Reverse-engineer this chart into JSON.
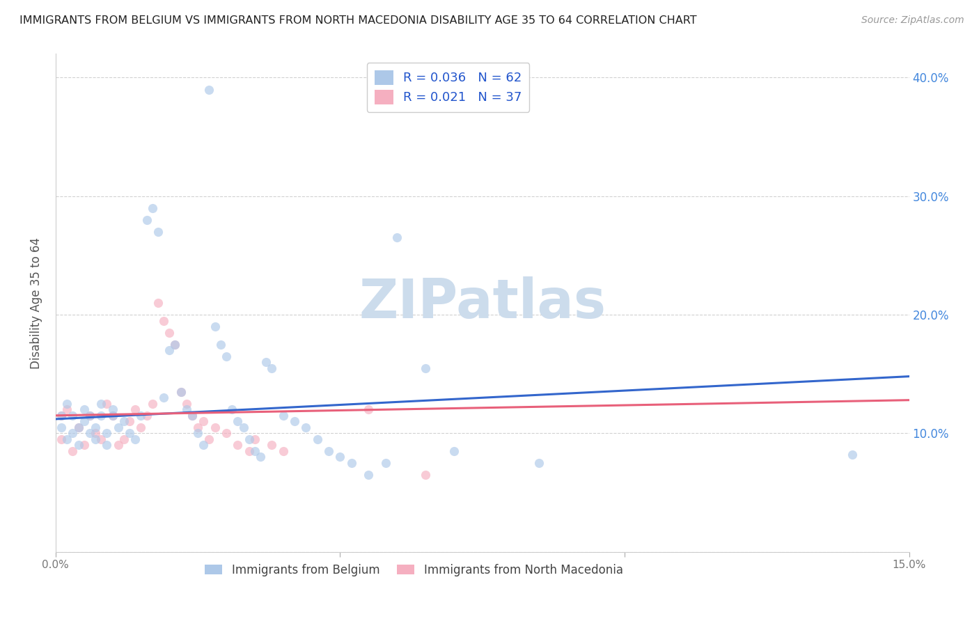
{
  "title": "IMMIGRANTS FROM BELGIUM VS IMMIGRANTS FROM NORTH MACEDONIA DISABILITY AGE 35 TO 64 CORRELATION CHART",
  "source": "Source: ZipAtlas.com",
  "ylabel": "Disability Age 35 to 64",
  "xlim": [
    0.0,
    0.15
  ],
  "ylim": [
    0.0,
    0.42
  ],
  "xticks": [
    0.0,
    0.05,
    0.1,
    0.15
  ],
  "yticks": [
    0.0,
    0.1,
    0.2,
    0.3,
    0.4
  ],
  "xtick_labels_show": [
    "0.0%",
    "",
    "",
    "15.0%"
  ],
  "ytick_labels_right": [
    "",
    "10.0%",
    "20.0%",
    "30.0%",
    "40.0%"
  ],
  "legend_labels_bottom": [
    "Immigrants from Belgium",
    "Immigrants from North Macedonia"
  ],
  "R_belgium": 0.036,
  "N_belgium": 62,
  "R_macedonia": 0.021,
  "N_macedonia": 37,
  "color_belgium": "#adc8e8",
  "color_macedonia": "#f5afc0",
  "line_color_belgium": "#3366cc",
  "line_color_macedonia": "#e8607a",
  "scatter_alpha": 0.65,
  "scatter_size": 90,
  "watermark": "ZIPatlas",
  "watermark_color": "#ccdcec",
  "background_color": "#ffffff",
  "grid_color": "#cccccc",
  "blue_x": [
    0.001,
    0.001,
    0.002,
    0.002,
    0.003,
    0.003,
    0.004,
    0.004,
    0.005,
    0.005,
    0.006,
    0.006,
    0.007,
    0.007,
    0.008,
    0.008,
    0.009,
    0.009,
    0.01,
    0.01,
    0.011,
    0.012,
    0.013,
    0.014,
    0.015,
    0.016,
    0.017,
    0.018,
    0.019,
    0.02,
    0.021,
    0.022,
    0.023,
    0.024,
    0.025,
    0.026,
    0.027,
    0.028,
    0.029,
    0.03,
    0.031,
    0.032,
    0.033,
    0.034,
    0.035,
    0.036,
    0.037,
    0.038,
    0.04,
    0.042,
    0.044,
    0.046,
    0.048,
    0.05,
    0.052,
    0.055,
    0.058,
    0.06,
    0.065,
    0.07,
    0.085,
    0.14
  ],
  "blue_y": [
    0.115,
    0.105,
    0.125,
    0.095,
    0.115,
    0.1,
    0.105,
    0.09,
    0.11,
    0.12,
    0.115,
    0.1,
    0.105,
    0.095,
    0.115,
    0.125,
    0.1,
    0.09,
    0.115,
    0.12,
    0.105,
    0.11,
    0.1,
    0.095,
    0.115,
    0.28,
    0.29,
    0.27,
    0.13,
    0.17,
    0.175,
    0.135,
    0.12,
    0.115,
    0.1,
    0.09,
    0.39,
    0.19,
    0.175,
    0.165,
    0.12,
    0.11,
    0.105,
    0.095,
    0.085,
    0.08,
    0.16,
    0.155,
    0.115,
    0.11,
    0.105,
    0.095,
    0.085,
    0.08,
    0.075,
    0.065,
    0.075,
    0.265,
    0.155,
    0.085,
    0.075,
    0.082
  ],
  "pink_x": [
    0.001,
    0.001,
    0.002,
    0.003,
    0.004,
    0.005,
    0.006,
    0.007,
    0.008,
    0.009,
    0.01,
    0.011,
    0.012,
    0.013,
    0.014,
    0.015,
    0.016,
    0.017,
    0.018,
    0.019,
    0.02,
    0.021,
    0.022,
    0.023,
    0.024,
    0.025,
    0.026,
    0.027,
    0.028,
    0.03,
    0.032,
    0.034,
    0.035,
    0.038,
    0.04,
    0.055,
    0.065
  ],
  "pink_y": [
    0.115,
    0.095,
    0.12,
    0.085,
    0.105,
    0.09,
    0.115,
    0.1,
    0.095,
    0.125,
    0.115,
    0.09,
    0.095,
    0.11,
    0.12,
    0.105,
    0.115,
    0.125,
    0.21,
    0.195,
    0.185,
    0.175,
    0.135,
    0.125,
    0.115,
    0.105,
    0.11,
    0.095,
    0.105,
    0.1,
    0.09,
    0.085,
    0.095,
    0.09,
    0.085,
    0.12,
    0.065
  ],
  "trendline_blue_start": 0.112,
  "trendline_blue_end": 0.148,
  "trendline_pink_start": 0.115,
  "trendline_pink_end": 0.128
}
